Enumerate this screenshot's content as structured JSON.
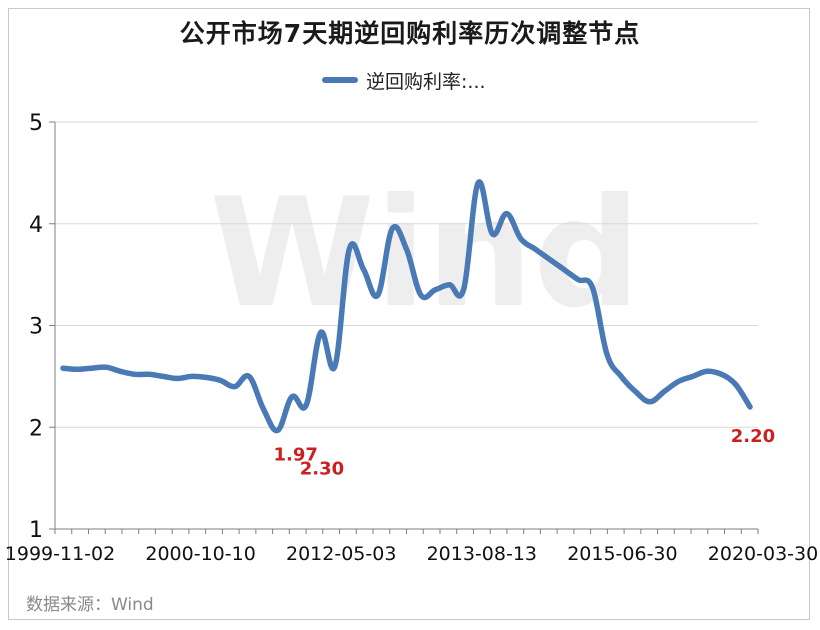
{
  "source": "数据来源：Wind",
  "colors": {
    "line": "#4a7ab5",
    "annotation": "#cc1f1f",
    "grid": "#d9d9d9",
    "axis": "#7f7f7f"
  },
  "chart_data": {
    "type": "line",
    "title": "公开市场7天期逆回购利率历次调整节点",
    "legend_position": "top",
    "grid": true,
    "ylim": [
      1,
      5
    ],
    "yticks": [
      "1",
      "2",
      "3",
      "4",
      "5"
    ],
    "xtick_labels": [
      "1999-11-02",
      "2000-10-10",
      "2012-05-03",
      "2013-08-13",
      "2015-06-30",
      "2020-03-30"
    ],
    "series": [
      {
        "name": "逆回购利率:...",
        "color": "#4a7ab5",
        "values": [
          2.58,
          2.57,
          2.58,
          2.59,
          2.55,
          2.52,
          2.52,
          2.5,
          2.48,
          2.5,
          2.49,
          2.46,
          2.4,
          2.5,
          2.18,
          1.97,
          2.3,
          2.22,
          2.93,
          2.6,
          3.75,
          3.55,
          3.3,
          3.95,
          3.75,
          3.3,
          3.35,
          3.4,
          3.36,
          4.4,
          3.9,
          4.1,
          3.85,
          3.75,
          3.65,
          3.55,
          3.45,
          3.37,
          2.72,
          2.5,
          2.35,
          2.25,
          2.35,
          2.45,
          2.5,
          2.55,
          2.52,
          2.42,
          2.2
        ]
      }
    ],
    "annotations": [
      {
        "label": "1.97",
        "value": 1.97
      },
      {
        "label": "2.30",
        "value": 2.3
      },
      {
        "label": "2.20",
        "value": 2.2
      }
    ],
    "watermark": "Wind"
  }
}
